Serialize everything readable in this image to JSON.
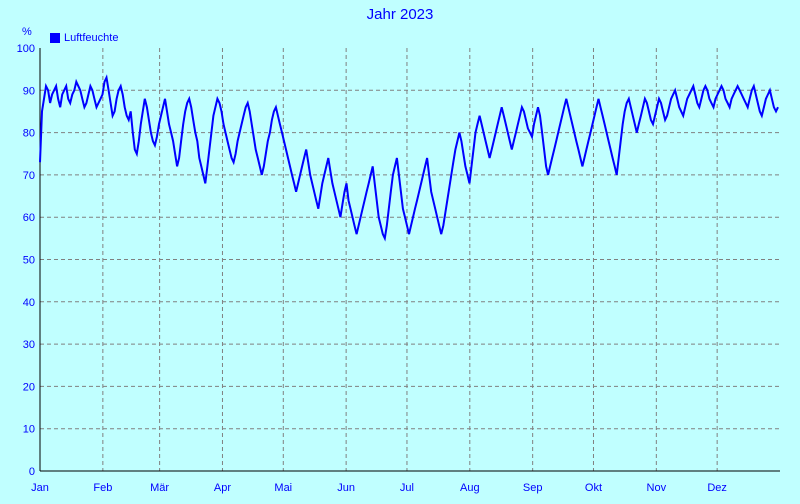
{
  "chart_data": {
    "type": "line",
    "title": "Jahr 2023",
    "ylabel": "%",
    "xlabel": "",
    "ylim": [
      0,
      100
    ],
    "yticks": [
      0,
      10,
      20,
      30,
      40,
      50,
      60,
      70,
      80,
      90,
      100
    ],
    "months": [
      "Jan",
      "Feb",
      "Mär",
      "Apr",
      "Mai",
      "Jun",
      "Jul",
      "Aug",
      "Sep",
      "Okt",
      "Nov",
      "Dez"
    ],
    "grid": true,
    "legend": "top-left",
    "series": [
      {
        "name": "Luftfeuchte",
        "color": "#0000ff",
        "daily_mean": [
          73,
          85,
          88,
          91,
          90,
          87,
          89,
          90,
          91,
          88,
          86,
          89,
          90,
          91,
          88,
          87,
          89,
          90,
          92,
          91,
          90,
          88,
          86,
          87,
          89,
          91,
          90,
          88,
          86,
          87,
          88,
          89,
          92,
          93,
          90,
          87,
          84,
          85,
          88,
          90,
          91,
          89,
          86,
          84,
          83,
          85,
          80,
          76,
          75,
          78,
          82,
          85,
          88,
          86,
          83,
          80,
          78,
          77,
          79,
          82,
          84,
          86,
          88,
          85,
          82,
          80,
          78,
          75,
          72,
          74,
          78,
          82,
          85,
          87,
          88,
          86,
          83,
          80,
          78,
          74,
          72,
          70,
          68,
          72,
          76,
          80,
          84,
          86,
          88,
          87,
          85,
          82,
          80,
          78,
          76,
          74,
          73,
          75,
          78,
          80,
          82,
          84,
          86,
          87,
          85,
          82,
          79,
          76,
          74,
          72,
          70,
          72,
          75,
          78,
          80,
          83,
          85,
          86,
          84,
          82,
          80,
          78,
          76,
          74,
          72,
          70,
          68,
          66,
          68,
          70,
          72,
          74,
          76,
          73,
          70,
          68,
          66,
          64,
          62,
          65,
          68,
          70,
          72,
          74,
          71,
          68,
          66,
          64,
          62,
          60,
          63,
          66,
          68,
          64,
          62,
          60,
          58,
          56,
          58,
          60,
          62,
          64,
          66,
          68,
          70,
          72,
          68,
          64,
          60,
          58,
          56,
          55,
          58,
          62,
          66,
          70,
          72,
          74,
          70,
          66,
          62,
          60,
          58,
          56,
          58,
          60,
          62,
          64,
          66,
          68,
          70,
          72,
          74,
          70,
          66,
          64,
          62,
          60,
          58,
          56,
          58,
          61,
          64,
          67,
          70,
          73,
          76,
          78,
          80,
          78,
          75,
          72,
          70,
          68,
          72,
          76,
          80,
          82,
          84,
          82,
          80,
          78,
          76,
          74,
          76,
          78,
          80,
          82,
          84,
          86,
          84,
          82,
          80,
          78,
          76,
          78,
          80,
          82,
          84,
          86,
          85,
          83,
          81,
          80,
          79,
          82,
          84,
          86,
          84,
          80,
          76,
          72,
          70,
          72,
          74,
          76,
          78,
          80,
          82,
          84,
          86,
          88,
          86,
          84,
          82,
          80,
          78,
          76,
          74,
          72,
          74,
          76,
          78,
          80,
          82,
          84,
          86,
          88,
          86,
          84,
          82,
          80,
          78,
          76,
          74,
          72,
          70,
          74,
          78,
          82,
          85,
          87,
          88,
          86,
          84,
          82,
          80,
          82,
          84,
          86,
          88,
          87,
          85,
          83,
          82,
          84,
          86,
          88,
          87,
          85,
          83,
          84,
          86,
          88,
          89,
          90,
          88,
          86,
          85,
          84,
          86,
          88,
          89,
          90,
          91,
          89,
          87,
          86,
          88,
          90,
          91,
          90,
          88,
          87,
          86,
          88,
          89,
          90,
          91,
          90,
          88,
          87,
          86,
          88,
          89,
          90,
          91,
          90,
          89,
          88,
          87,
          86,
          88,
          90,
          91,
          89,
          87,
          85,
          84,
          86,
          88,
          89,
          90,
          88,
          86,
          85,
          86
        ]
      }
    ]
  }
}
